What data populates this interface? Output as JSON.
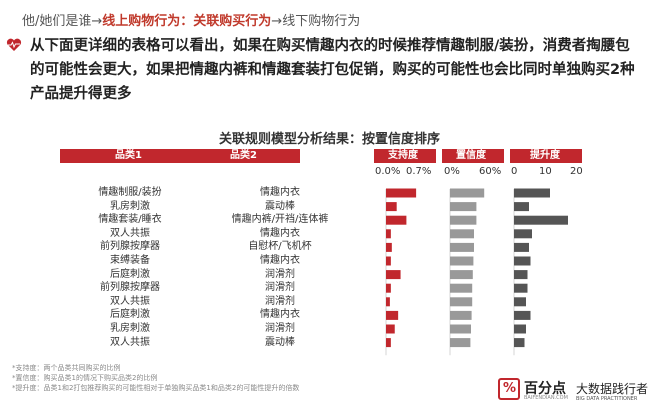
{
  "header": {
    "title_prefix": "他/她们是谁→",
    "title_bold": "线上购物行为：关联购买行为",
    "title_suffix": "→线下购物行为"
  },
  "body_text": "从下面更详细的表格可以看出，如果在购买情趣内衣的时候推荐情趣制服/装扮，消费者掏腰包的可能性会更大，如果把情趣内裤和情趣套装打包促销，购买的可能性也会比同时单独购买2种产品提升得更多",
  "chart_data": {
    "type": "table",
    "title": "关联规则模型分析结果：按置信度排序",
    "columns": [
      "品类1",
      "品类2",
      "支持度",
      "置信度",
      "提升度"
    ],
    "axes": {
      "support": {
        "ticks": [
          "0.0%",
          "0.7%"
        ],
        "range": [
          0,
          0.7
        ]
      },
      "confidence": {
        "ticks": [
          "0%",
          "60%"
        ],
        "range": [
          0,
          60
        ]
      },
      "lift": {
        "ticks": [
          "0",
          "10",
          "20"
        ],
        "range": [
          0,
          20
        ]
      }
    },
    "colors": {
      "support": "#c1272d",
      "confidence": "#999999",
      "lift": "#555555",
      "header": "#c1272d"
    },
    "rows": [
      {
        "cat1": "情趣制服/装扮",
        "cat2": "情趣内衣",
        "support": 0.62,
        "confidence": 57,
        "lift": 12.0
      },
      {
        "cat1": "乳房刺激",
        "cat2": "震动棒",
        "support": 0.22,
        "confidence": 44,
        "lift": 5.0
      },
      {
        "cat1": "情趣套装/睡衣",
        "cat2": "情趣内裤/开裆/连体裤",
        "support": 0.42,
        "confidence": 44,
        "lift": 18.0
      },
      {
        "cat1": "双人共振",
        "cat2": "情趣内衣",
        "support": 0.1,
        "confidence": 40,
        "lift": 6.0
      },
      {
        "cat1": "前列腺按摩器",
        "cat2": "自慰杯/飞机杯",
        "support": 0.12,
        "confidence": 40,
        "lift": 5.0
      },
      {
        "cat1": "束缚装备",
        "cat2": "情趣内衣",
        "support": 0.1,
        "confidence": 39,
        "lift": 5.5
      },
      {
        "cat1": "后庭刺激",
        "cat2": "润滑剂",
        "support": 0.3,
        "confidence": 38,
        "lift": 4.5
      },
      {
        "cat1": "前列腺按摩器",
        "cat2": "润滑剂",
        "support": 0.1,
        "confidence": 37,
        "lift": 4.5
      },
      {
        "cat1": "双人共振",
        "cat2": "润滑剂",
        "support": 0.08,
        "confidence": 37,
        "lift": 4.0
      },
      {
        "cat1": "后庭刺激",
        "cat2": "情趣内衣",
        "support": 0.25,
        "confidence": 36,
        "lift": 5.5
      },
      {
        "cat1": "乳房刺激",
        "cat2": "润滑剂",
        "support": 0.18,
        "confidence": 35,
        "lift": 4.0
      },
      {
        "cat1": "双人共振",
        "cat2": "震动棒",
        "support": 0.1,
        "confidence": 34,
        "lift": 3.5
      }
    ]
  },
  "notes": [
    "*支持度：两个品类共同购买的比例",
    "*置信度：购买品类1的情况下购买品类2的比例",
    "*提升度：品类1和2打包推荐购买的可能性相对于单独购买品类1和品类2的可能性提升的倍数"
  ],
  "logo": {
    "brand": "百分点",
    "brand_sub": "BAIFENDIAN.COM",
    "slogan": "大数据践行者",
    "slogan_sub": "BIG DATA PRACTITIONER"
  }
}
